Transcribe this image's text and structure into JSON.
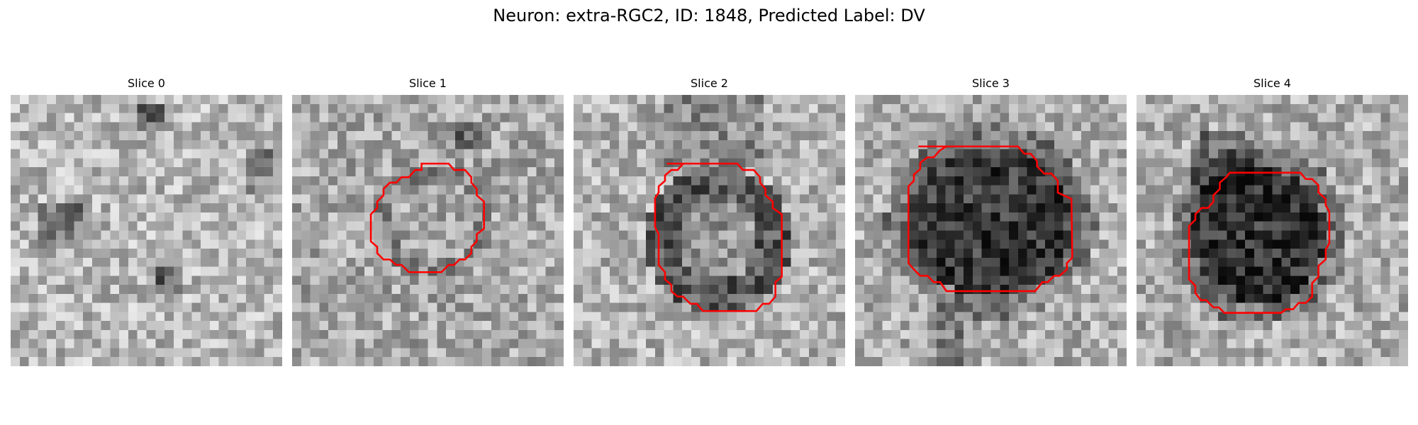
{
  "figure": {
    "title": "Neuron: extra-RGC2, ID: 1848, Predicted Label: DV"
  },
  "panels": [
    {
      "title": "Slice 0",
      "has_contour": false,
      "interior": "noise"
    },
    {
      "title": "Slice 1",
      "has_contour": true,
      "interior": "mixed"
    },
    {
      "title": "Slice 2",
      "has_contour": true,
      "interior": "ring"
    },
    {
      "title": "Slice 3",
      "has_contour": true,
      "interior": "dark"
    },
    {
      "title": "Slice 4",
      "has_contour": true,
      "interior": "dark"
    }
  ],
  "colors": {
    "contour": "#ff0000",
    "background": "#ffffff"
  },
  "image_style": "grayscale pixelated microscopy patch, 30x30 grid"
}
